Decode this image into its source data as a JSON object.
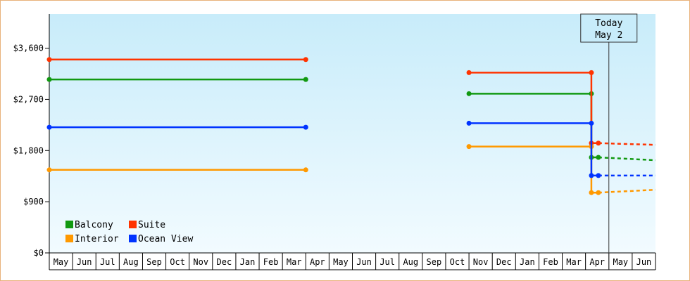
{
  "chart_data": {
    "type": "line",
    "title": "",
    "xlabel": "",
    "ylabel": "",
    "ylim": [
      0,
      4200
    ],
    "y_ticks": [
      0,
      900,
      1800,
      2700,
      3600
    ],
    "y_tick_labels": [
      "$0",
      "$900",
      "$1,800",
      "$2,700",
      "$3,600"
    ],
    "month_labels": [
      "May",
      "Jun",
      "Jul",
      "Aug",
      "Sep",
      "Oct",
      "Nov",
      "Dec",
      "Jan",
      "Feb",
      "Mar",
      "Apr",
      "May",
      "Jun",
      "Jul",
      "Aug",
      "Sep",
      "Oct",
      "Nov",
      "Dec",
      "Jan",
      "Feb",
      "Mar",
      "Apr",
      "May",
      "Jun"
    ],
    "grid": false,
    "legend_position": "bottom-left",
    "today_marker": {
      "line1": "Today",
      "line2": "May 2",
      "month_index": 24.0
    },
    "series": [
      {
        "name": "Balcony",
        "color": "#119911",
        "segments": [
          {
            "style": "solid",
            "points": [
              [
                0,
                3050
              ],
              [
                11,
                3050
              ]
            ]
          },
          {
            "style": "solid",
            "points": [
              [
                18,
                2800
              ],
              [
                23.25,
                2800
              ],
              [
                23.25,
                1680
              ],
              [
                23.55,
                1680
              ]
            ]
          },
          {
            "style": "dotted",
            "points": [
              [
                23.55,
                1680
              ],
              [
                26,
                1630
              ]
            ]
          }
        ]
      },
      {
        "name": "Suite",
        "color": "#ff3300",
        "segments": [
          {
            "style": "solid",
            "points": [
              [
                0,
                3400
              ],
              [
                11,
                3400
              ]
            ]
          },
          {
            "style": "solid",
            "points": [
              [
                18,
                3170
              ],
              [
                23.25,
                3170
              ],
              [
                23.25,
                1930
              ],
              [
                23.55,
                1930
              ]
            ]
          },
          {
            "style": "dotted",
            "points": [
              [
                23.55,
                1930
              ],
              [
                26,
                1900
              ]
            ]
          }
        ]
      },
      {
        "name": "Interior",
        "color": "#ff9900",
        "segments": [
          {
            "style": "solid",
            "points": [
              [
                0,
                1460
              ],
              [
                11,
                1460
              ]
            ]
          },
          {
            "style": "solid",
            "points": [
              [
                18,
                1870
              ],
              [
                23.25,
                1870
              ],
              [
                23.25,
                1060
              ],
              [
                23.55,
                1060
              ]
            ]
          },
          {
            "style": "dotted",
            "points": [
              [
                23.55,
                1060
              ],
              [
                26,
                1110
              ]
            ]
          }
        ]
      },
      {
        "name": "Ocean View",
        "color": "#0033ff",
        "segments": [
          {
            "style": "solid",
            "points": [
              [
                0,
                2210
              ],
              [
                11,
                2210
              ]
            ]
          },
          {
            "style": "solid",
            "points": [
              [
                18,
                2280
              ],
              [
                23.25,
                2280
              ],
              [
                23.25,
                1360
              ],
              [
                23.55,
                1360
              ]
            ]
          },
          {
            "style": "dotted",
            "points": [
              [
                23.55,
                1360
              ],
              [
                26,
                1360
              ]
            ]
          }
        ]
      }
    ],
    "legend_order": [
      "Balcony",
      "Suite",
      "Interior",
      "Ocean View"
    ]
  }
}
